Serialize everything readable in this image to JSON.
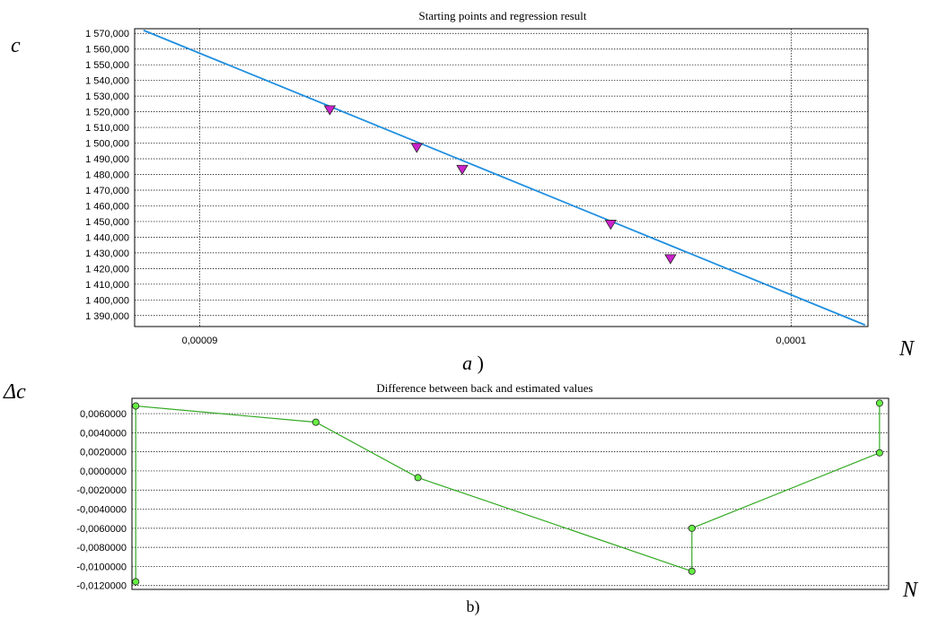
{
  "chart_data": [
    {
      "type": "line",
      "title": "Starting points and regression result",
      "ylabel": "c",
      "xlabel": "N",
      "caption": "a)",
      "xlim": [
        8.89e-05,
        0.0001013
      ],
      "ylim": [
        1383000,
        1573000
      ],
      "x_ticks": [
        {
          "value": 9e-05,
          "label": "0,00009"
        },
        {
          "value": 0.0001,
          "label": "0,0001"
        }
      ],
      "y_ticks": [
        {
          "value": 1390000,
          "label": "1 390,000"
        },
        {
          "value": 1400000,
          "label": "1 400,000"
        },
        {
          "value": 1410000,
          "label": "1 410,000"
        },
        {
          "value": 1420000,
          "label": "1 420,000"
        },
        {
          "value": 1430000,
          "label": "1 430,000"
        },
        {
          "value": 1440000,
          "label": "1 440,000"
        },
        {
          "value": 1450000,
          "label": "1 450,000"
        },
        {
          "value": 1460000,
          "label": "1 460,000"
        },
        {
          "value": 1470000,
          "label": "1 470,000"
        },
        {
          "value": 1480000,
          "label": "1 480,000"
        },
        {
          "value": 1490000,
          "label": "1 490,000"
        },
        {
          "value": 1500000,
          "label": "1 500,000"
        },
        {
          "value": 1510000,
          "label": "1 510,000"
        },
        {
          "value": 1520000,
          "label": "1 520,000"
        },
        {
          "value": 1530000,
          "label": "1 530,000"
        },
        {
          "value": 1540000,
          "label": "1 540,000"
        },
        {
          "value": 1550000,
          "label": "1 550,000"
        },
        {
          "value": 1560000,
          "label": "1 560,000"
        },
        {
          "value": 1570000,
          "label": "1 570,000"
        }
      ],
      "regression_line": {
        "x": [
          8.905e-05,
          0.00010125
        ],
        "y": [
          1572000,
          1384000
        ],
        "color": "#1f8fe0"
      },
      "points": {
        "x": [
          9.22e-05,
          9.367e-05,
          9.444e-05,
          9.695e-05,
          9.796e-05
        ],
        "y": [
          1521000,
          1497000,
          1483000,
          1448000,
          1426000
        ],
        "color": "#cc22cc",
        "marker": "triangle-down"
      },
      "grid": true
    },
    {
      "type": "line",
      "title": "Difference between back and estimated values",
      "ylabel": "Δc",
      "xlabel": "N",
      "caption": "b)",
      "xlim": [
        0,
        100
      ],
      "ylim": [
        -0.0124,
        0.0076
      ],
      "y_ticks": [
        {
          "value": 0.006,
          "label": "0,0060000"
        },
        {
          "value": 0.004,
          "label": "0,0040000"
        },
        {
          "value": 0.002,
          "label": "0,0020000"
        },
        {
          "value": 0.0,
          "label": "0,0000000"
        },
        {
          "value": -0.002,
          "label": "-0,0020000"
        },
        {
          "value": -0.004,
          "label": "-0,0040000"
        },
        {
          "value": -0.006,
          "label": "-0,0060000"
        },
        {
          "value": -0.008,
          "label": "-0,0080000"
        },
        {
          "value": -0.01,
          "label": "-0,0100000"
        },
        {
          "value": -0.012,
          "label": "-0,0120000"
        }
      ],
      "series": [
        {
          "color": "#33aa22",
          "marker_fill": "#66ee44",
          "x": [
            0.5,
            0.5,
            24.3,
            37.8,
            74.0,
            74.0,
            98.8,
            98.8
          ],
          "y": [
            -0.0116,
            0.0068,
            0.0051,
            -0.0007,
            -0.0105,
            -0.006,
            0.0019,
            0.0071
          ]
        }
      ],
      "grid": true
    }
  ]
}
